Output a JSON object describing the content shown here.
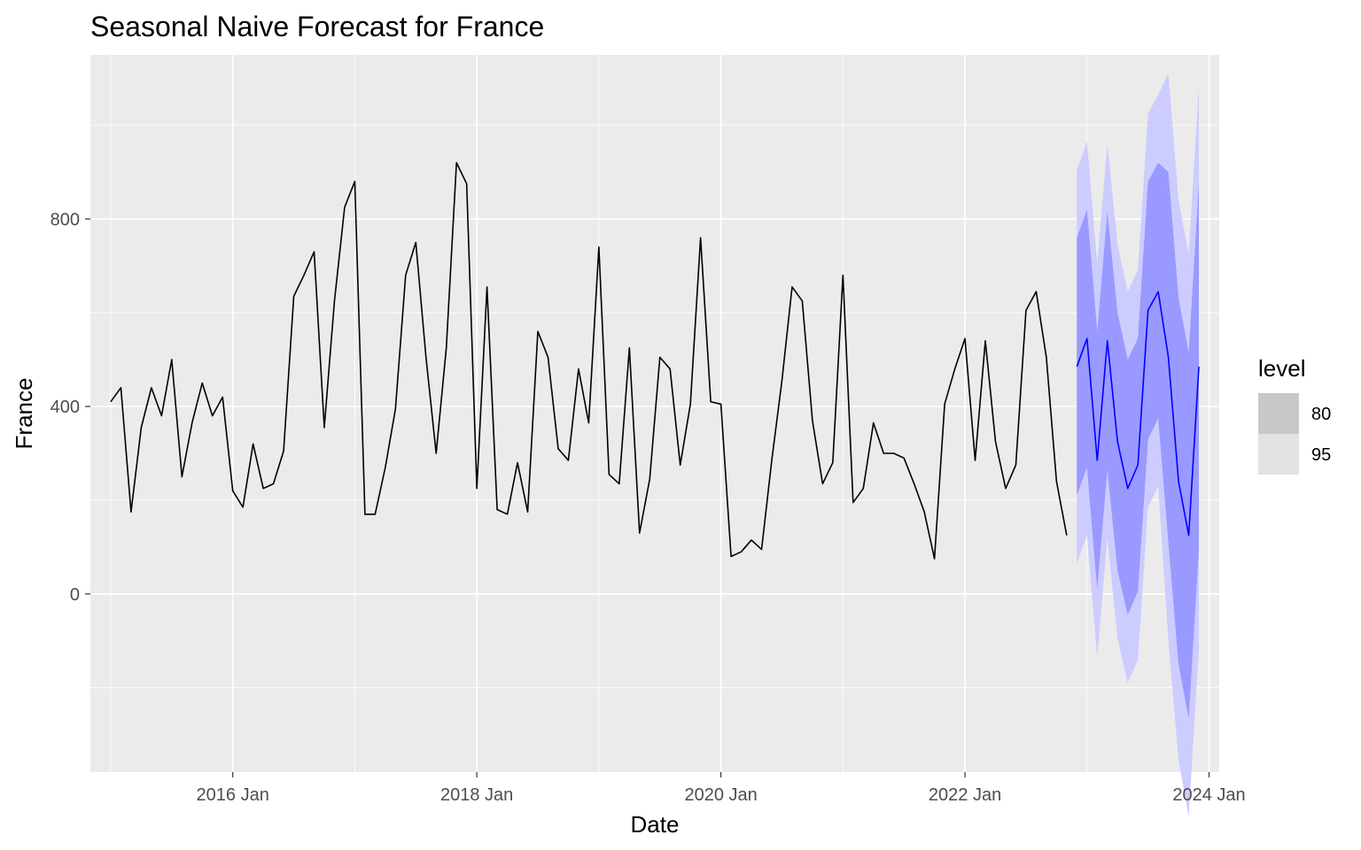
{
  "chart_data": {
    "type": "line",
    "title": "Seasonal Naive Forecast for France",
    "xlabel": "Date",
    "ylabel": "France",
    "x_start": "2015 Jan",
    "x_frequency": "monthly",
    "xlim": [
      "2014 Nov",
      "2024 Feb"
    ],
    "ylim": [
      -380,
      1150
    ],
    "x_ticks": [
      "2016 Jan",
      "2018 Jan",
      "2020 Jan",
      "2022 Jan",
      "2024 Jan"
    ],
    "y_ticks": [
      0,
      400,
      800
    ],
    "grid": true,
    "background": "#ebebeb",
    "legend": {
      "title": "level",
      "position": "right",
      "entries": [
        {
          "label": "80",
          "color": "#c8c8c8"
        },
        {
          "label": "95",
          "color": "#e3e3e3"
        }
      ]
    },
    "series": [
      {
        "color": "#000000",
        "start": "2015 Jan",
        "values": [
          410,
          440,
          175,
          355,
          440,
          380,
          500,
          250,
          365,
          450,
          380,
          420,
          220,
          185,
          320,
          225,
          235,
          305,
          635,
          680,
          730,
          355,
          625,
          825,
          880,
          170,
          170,
          270,
          395,
          680,
          750,
          505,
          300,
          525,
          920,
          875,
          225,
          655,
          180,
          170,
          280,
          175,
          560,
          505,
          310,
          285,
          480,
          365,
          740,
          255,
          235,
          525,
          130,
          245,
          505,
          480,
          275,
          405,
          760,
          410,
          405,
          80,
          90,
          115,
          95,
          285,
          455,
          655,
          625,
          370,
          235,
          280,
          680,
          195,
          225,
          365,
          300,
          300,
          290,
          235,
          175,
          75,
          405,
          480,
          545,
          285,
          540,
          325,
          225,
          275,
          605,
          645,
          505,
          240,
          125
        ]
      },
      {
        "color": "#0000ff",
        "start": "2022 Dec",
        "values": [
          485,
          545,
          285,
          540,
          325,
          225,
          275,
          605,
          645,
          505,
          240,
          125,
          485
        ],
        "interval_80": {
          "color": "#9999ff",
          "lower": [
            210,
            270,
            10,
            265,
            50,
            -45,
            5,
            330,
            375,
            110,
            -150,
            -265,
            95
          ],
          "upper": [
            760,
            820,
            560,
            815,
            600,
            500,
            545,
            880,
            920,
            900,
            630,
            515,
            875
          ]
        },
        "interval_95": {
          "color": "#ccccff",
          "lower": [
            65,
            125,
            -135,
            120,
            -95,
            -190,
            -140,
            185,
            230,
            -100,
            -355,
            -475,
            -115
          ],
          "upper": [
            905,
            965,
            705,
            960,
            745,
            645,
            690,
            1025,
            1065,
            1110,
            840,
            725,
            1085
          ]
        }
      }
    ]
  }
}
